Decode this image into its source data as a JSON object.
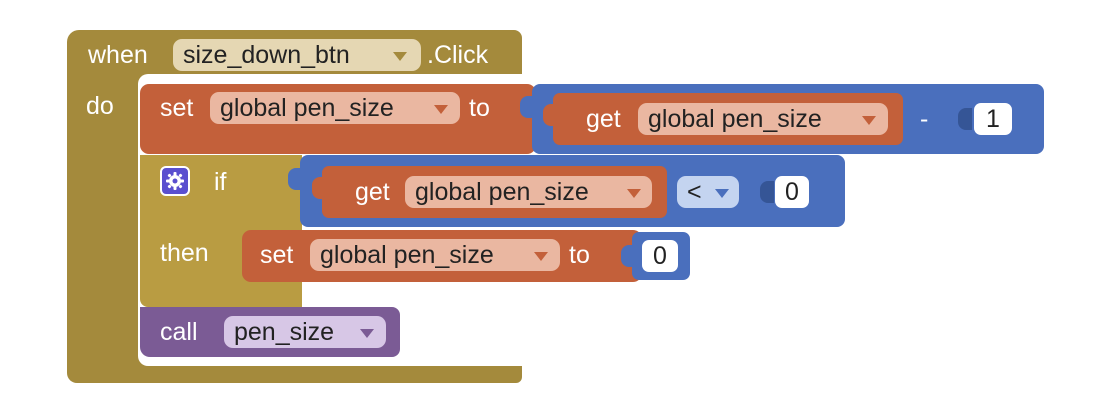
{
  "colors": {
    "event": "#a48a3c",
    "event_edge": "#8a7530",
    "variable": "#c3603a",
    "variable_edge": "#a04c2a",
    "math": "#4a6fbd",
    "math_edge": "#355596",
    "control": "#b99c42",
    "procedure": "#7b5b95",
    "procedure_edge": "#5f4475",
    "field_event": "#e5d7b3",
    "field_variable": "#eab7a1",
    "field_math": "#c4d4f0",
    "field_procedure": "#d7c7e6",
    "number_field": "#ffffff",
    "gear": "#5a4fcf"
  },
  "event": {
    "when_label": "when",
    "component": "size_down_btn",
    "event_name": ".Click",
    "do_label": "do"
  },
  "statements": {
    "set1": {
      "set_label": "set",
      "variable": "global pen_size",
      "to_label": "to",
      "minus": {
        "get_label": "get",
        "variable": "global pen_size",
        "operator": "-",
        "operand": "1"
      }
    },
    "if_block": {
      "gear_icon": "gear-icon",
      "if_label": "if",
      "then_label": "then",
      "compare": {
        "get_label": "get",
        "variable": "global pen_size",
        "operator": "<",
        "operand": "0"
      },
      "set2": {
        "set_label": "set",
        "variable": "global pen_size",
        "to_label": "to",
        "value": "0"
      }
    },
    "call": {
      "call_label": "call",
      "procedure": "pen_size"
    }
  }
}
